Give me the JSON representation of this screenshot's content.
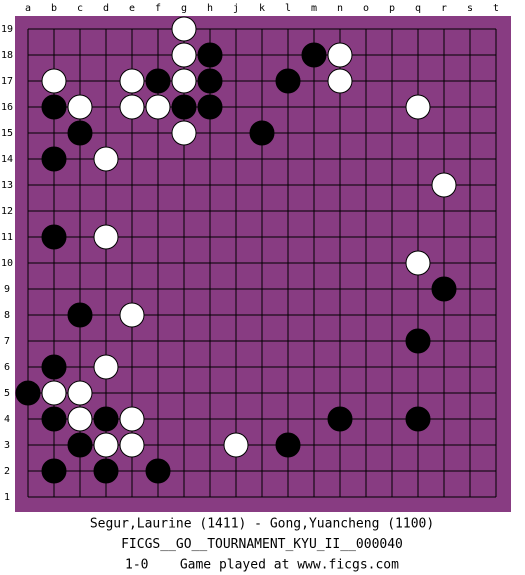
{
  "columns": [
    "a",
    "b",
    "c",
    "d",
    "e",
    "f",
    "g",
    "h",
    "j",
    "k",
    "l",
    "m",
    "n",
    "o",
    "p",
    "q",
    "r",
    "s",
    "t"
  ],
  "rows": [
    19,
    18,
    17,
    16,
    15,
    14,
    13,
    12,
    11,
    10,
    9,
    8,
    7,
    6,
    5,
    4,
    3,
    2,
    1
  ],
  "stones": {
    "black": [
      "h18",
      "m18",
      "f17",
      "h17",
      "l17",
      "b16",
      "g16",
      "h16",
      "c15",
      "k15",
      "b14",
      "b11",
      "r9",
      "c8",
      "q7",
      "b6",
      "a5",
      "b4",
      "d4",
      "n4",
      "q4",
      "c3",
      "l3",
      "b2",
      "d2",
      "f2"
    ],
    "white": [
      "g19",
      "g18",
      "n18",
      "b17",
      "e17",
      "g17",
      "n17",
      "c16",
      "e16",
      "f16",
      "q16",
      "g15",
      "d14",
      "r13",
      "d11",
      "q10",
      "e8",
      "d6",
      "b5",
      "c5",
      "c4",
      "e4",
      "d3",
      "e3",
      "j3"
    ]
  },
  "footer": [
    "Segur,Laurine (1411) - Gong,Yuancheng (1100)",
    "FICGS__GO__TOURNAMENT_KYU_II__000040",
    "1-0    Game played at www.ficgs.com"
  ]
}
